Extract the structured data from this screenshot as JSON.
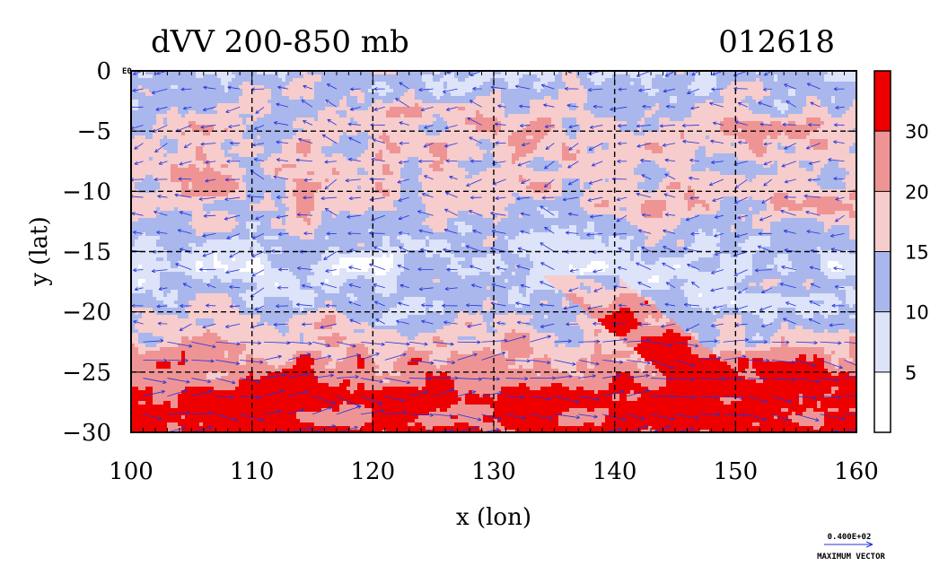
{
  "chart_data": {
    "type": "heatmap",
    "title": "dVV 200-850 mb",
    "timestamp": "012618",
    "xlabel": "x (lon)",
    "ylabel": "y (lat)",
    "xlim": [
      100,
      160
    ],
    "ylim": [
      -30,
      0
    ],
    "x_ticks": [
      100,
      110,
      120,
      130,
      140,
      150,
      160
    ],
    "y_ticks": [
      0,
      -5,
      -10,
      -15,
      -20,
      -25,
      -30
    ],
    "x_tick_labels": [
      "100",
      "110",
      "120",
      "130",
      "140",
      "150",
      "160"
    ],
    "y_tick_labels": [
      "0",
      "−5",
      "−10",
      "−15",
      "−20",
      "−25",
      "−30"
    ],
    "grid": true,
    "colorbar": {
      "levels": [
        0,
        5,
        10,
        15,
        20,
        30,
        40
      ],
      "labels": [
        "5",
        "10",
        "15",
        "20",
        "30"
      ],
      "colors": [
        "#ffffff",
        "#dde3f8",
        "#a9b7ec",
        "#f6cccc",
        "#ef9494",
        "#ee0000"
      ]
    },
    "field_rows": [
      {
        "lat": -1.5,
        "band": 2,
        "pattern": "mixed"
      },
      {
        "lat": -4.5,
        "band": 3,
        "pattern": "mixed"
      },
      {
        "lat": -7.5,
        "band": 3,
        "pattern": "mixed"
      },
      {
        "lat": -10.5,
        "band": 3,
        "pattern": "mixed"
      },
      {
        "lat": -13.5,
        "band": 2,
        "pattern": "mixed"
      },
      {
        "lat": -16.5,
        "band": 1,
        "pattern": "mixed"
      },
      {
        "lat": -19.5,
        "band": 2,
        "pattern": "mixed"
      },
      {
        "lat": -22.5,
        "band": 3,
        "pattern": "mixed"
      },
      {
        "lat": -24.5,
        "band": 4,
        "pattern": "mixed"
      },
      {
        "lat": -26.5,
        "band": 5,
        "pattern": "mixed"
      },
      {
        "lat": -28.5,
        "band": 5,
        "pattern": "mixed"
      }
    ],
    "vectors": {
      "color": "#2233dd",
      "reference_value": "0.400E+02",
      "reference_label": "MAXIMUM VECTOR",
      "lon_step": 2,
      "lat_step": 1.5
    },
    "corner_label": "E0"
  }
}
